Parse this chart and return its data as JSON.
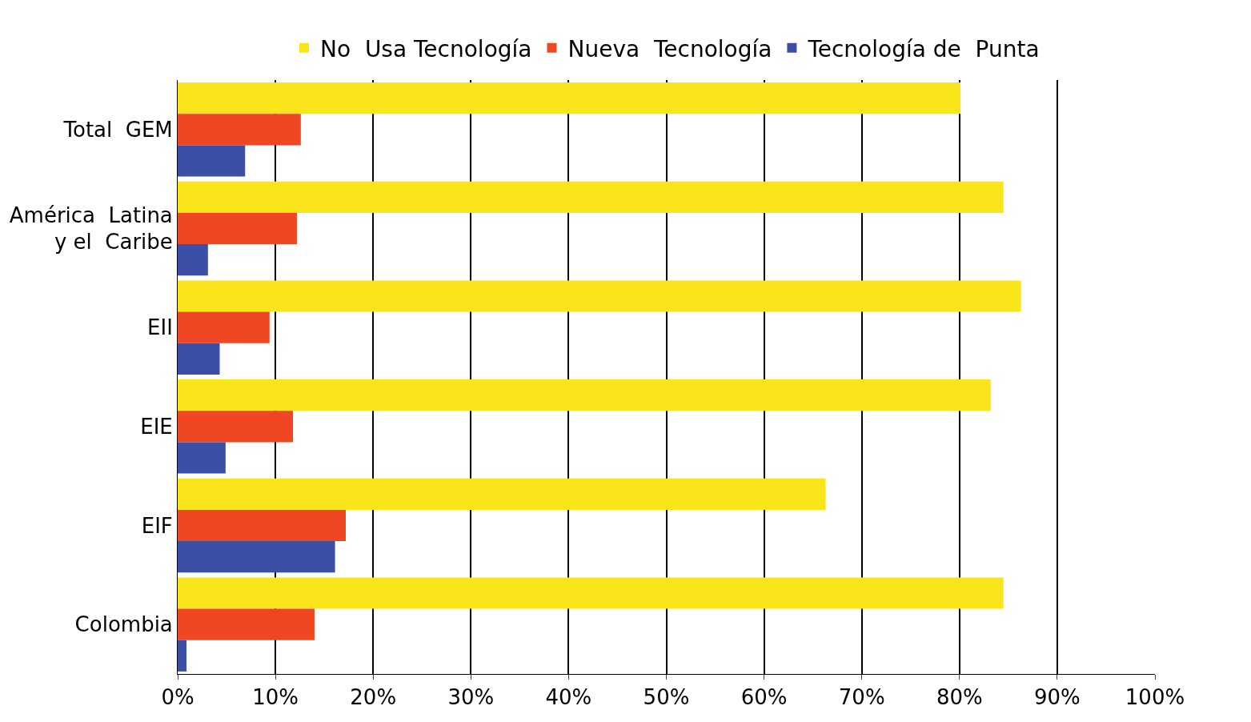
{
  "chart_data": {
    "type": "bar",
    "orientation": "horizontal",
    "categories": [
      "Total  GEM",
      "América  Latina\ny el  Caribe",
      "EII",
      "EIE",
      "EIF",
      "Colombia"
    ],
    "series": [
      {
        "name": "No  Usa Tecnología",
        "color": "#f9e51a",
        "values": [
          80.1,
          84.5,
          86.3,
          83.2,
          66.3,
          84.5
        ]
      },
      {
        "name": "Nueva  Tecnología",
        "color": "#ef4723",
        "values": [
          12.6,
          12.2,
          9.4,
          11.8,
          17.2,
          14.0
        ]
      },
      {
        "name": "Tecnología de  Punta",
        "color": "#3a4fa5",
        "values": [
          6.9,
          3.1,
          4.3,
          4.9,
          16.1,
          0.9
        ]
      }
    ],
    "xlim": [
      0,
      100
    ],
    "xticks": [
      {
        "value": 0,
        "label": "0%"
      },
      {
        "value": 10,
        "label": "10%"
      },
      {
        "value": 20,
        "label": "20%"
      },
      {
        "value": 30,
        "label": "30%"
      },
      {
        "value": 40,
        "label": "40%"
      },
      {
        "value": 50,
        "label": "50%"
      },
      {
        "value": 60,
        "label": "60%"
      },
      {
        "value": 70,
        "label": "70%"
      },
      {
        "value": 80,
        "label": "80%"
      },
      {
        "value": 90,
        "label": "90%"
      },
      {
        "value": 100,
        "label": "100%"
      }
    ],
    "grid": "x",
    "legend": "top"
  }
}
